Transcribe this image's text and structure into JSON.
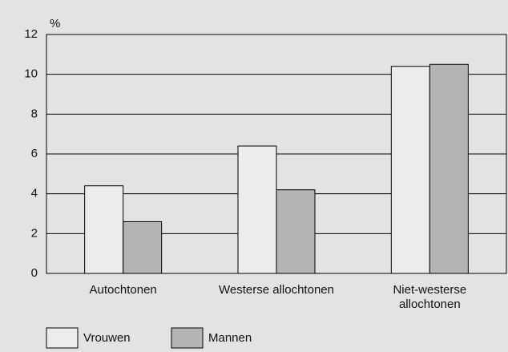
{
  "chart_data": {
    "type": "bar",
    "y_axis_label": "%",
    "categories": [
      "Autochtonen",
      "Westerse allochtonen",
      "Niet-westerse\nallochtonen"
    ],
    "series": [
      {
        "name": "Vrouwen",
        "color": "#ececec",
        "values": [
          4.4,
          6.4,
          10.4
        ]
      },
      {
        "name": "Mannen",
        "color": "#b4b4b4",
        "values": [
          2.6,
          4.2,
          10.5
        ]
      }
    ],
    "ylim": [
      0,
      12
    ],
    "yticks": [
      0,
      2,
      4,
      6,
      8,
      10,
      12
    ],
    "grid": true,
    "legend": "bottom"
  }
}
